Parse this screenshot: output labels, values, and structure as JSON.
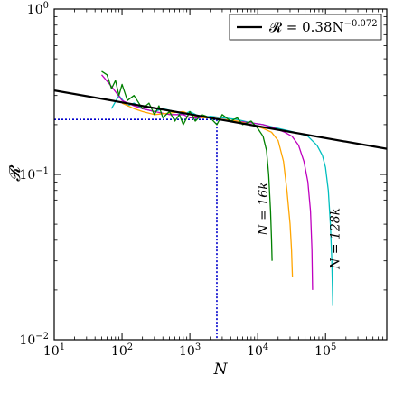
{
  "chart_data": {
    "type": "line",
    "xscale": "log",
    "yscale": "log",
    "xlim": [
      10,
      800000
    ],
    "ylim": [
      0.01,
      1
    ],
    "xlabel": "N",
    "ylabel": "𝓡",
    "xticks": [
      {
        "value": 10,
        "base": "10",
        "exp": "1"
      },
      {
        "value": 100,
        "base": "10",
        "exp": "2"
      },
      {
        "value": 1000,
        "base": "10",
        "exp": "3"
      },
      {
        "value": 10000,
        "base": "10",
        "exp": "4"
      },
      {
        "value": 100000,
        "base": "10",
        "exp": "5"
      }
    ],
    "yticks": [
      {
        "value": 0.01,
        "base": "10",
        "exp": "−2"
      },
      {
        "value": 0.1,
        "base": "10",
        "exp": "−1"
      },
      {
        "value": 1,
        "base": "10",
        "exp": "0"
      }
    ],
    "grid": false,
    "legend_position": "top-right",
    "fit": {
      "label_main": "𝓡 = 0.38N",
      "label_exp": "−0.072",
      "prefactor": 0.38,
      "exponent": -0.072,
      "color": "#000000"
    },
    "reference_lines": {
      "color": "#0000cc",
      "x_value": 2500,
      "y_value": 0.215
    },
    "series": [
      {
        "color": "#00bfbf",
        "x": [
          70,
          90,
          120,
          150,
          200,
          300,
          400,
          600,
          800,
          1000,
          1500,
          2000,
          3000,
          5000,
          8000,
          12000,
          20000,
          35000,
          55000,
          75000,
          90000,
          100000,
          110000,
          118000,
          124000,
          128000
        ],
        "y": [
          0.25,
          0.3,
          0.26,
          0.27,
          0.25,
          0.24,
          0.25,
          0.24,
          0.23,
          0.24,
          0.22,
          0.225,
          0.22,
          0.215,
          0.205,
          0.2,
          0.19,
          0.18,
          0.17,
          0.15,
          0.13,
          0.11,
          0.08,
          0.05,
          0.03,
          0.016
        ]
      },
      {
        "color": "#bf00bf",
        "x": [
          50,
          70,
          100,
          150,
          200,
          300,
          500,
          800,
          1000,
          1500,
          2000,
          3000,
          5000,
          8000,
          12000,
          18000,
          25000,
          32000,
          40000,
          48000,
          55000,
          60000,
          63000,
          64500
        ],
        "y": [
          0.4,
          0.34,
          0.28,
          0.26,
          0.25,
          0.24,
          0.23,
          0.23,
          0.22,
          0.22,
          0.22,
          0.215,
          0.21,
          0.205,
          0.2,
          0.19,
          0.18,
          0.17,
          0.15,
          0.12,
          0.09,
          0.06,
          0.035,
          0.02
        ]
      },
      {
        "color": "#ffa500",
        "x": [
          100,
          150,
          200,
          300,
          500,
          800,
          1000,
          1500,
          2000,
          3000,
          5000,
          8000,
          12000,
          16000,
          20000,
          24000,
          27000,
          30000,
          31500,
          32500
        ],
        "y": [
          0.27,
          0.25,
          0.24,
          0.23,
          0.235,
          0.24,
          0.23,
          0.22,
          0.22,
          0.215,
          0.21,
          0.2,
          0.19,
          0.18,
          0.16,
          0.12,
          0.08,
          0.05,
          0.035,
          0.024
        ]
      },
      {
        "color": "#008000",
        "x": [
          50,
          60,
          70,
          80,
          90,
          100,
          120,
          150,
          200,
          250,
          300,
          350,
          400,
          500,
          600,
          700,
          800,
          1000,
          1200,
          1500,
          2000,
          2500,
          3000,
          4000,
          5000,
          6000,
          8000,
          10000,
          12000,
          13500,
          14500,
          15500,
          16000,
          16300
        ],
        "y": [
          0.42,
          0.4,
          0.33,
          0.37,
          0.3,
          0.35,
          0.28,
          0.3,
          0.25,
          0.27,
          0.23,
          0.26,
          0.22,
          0.24,
          0.21,
          0.23,
          0.2,
          0.24,
          0.21,
          0.23,
          0.22,
          0.2,
          0.23,
          0.21,
          0.22,
          0.2,
          0.21,
          0.19,
          0.17,
          0.14,
          0.1,
          0.06,
          0.04,
          0.03
        ]
      }
    ],
    "annotations": [
      {
        "text": "N = 16k",
        "x": 14000,
        "y": 0.062,
        "angle": -90
      },
      {
        "text": "N = 128k",
        "x": 160000,
        "y": 0.041,
        "angle": -90
      }
    ]
  }
}
